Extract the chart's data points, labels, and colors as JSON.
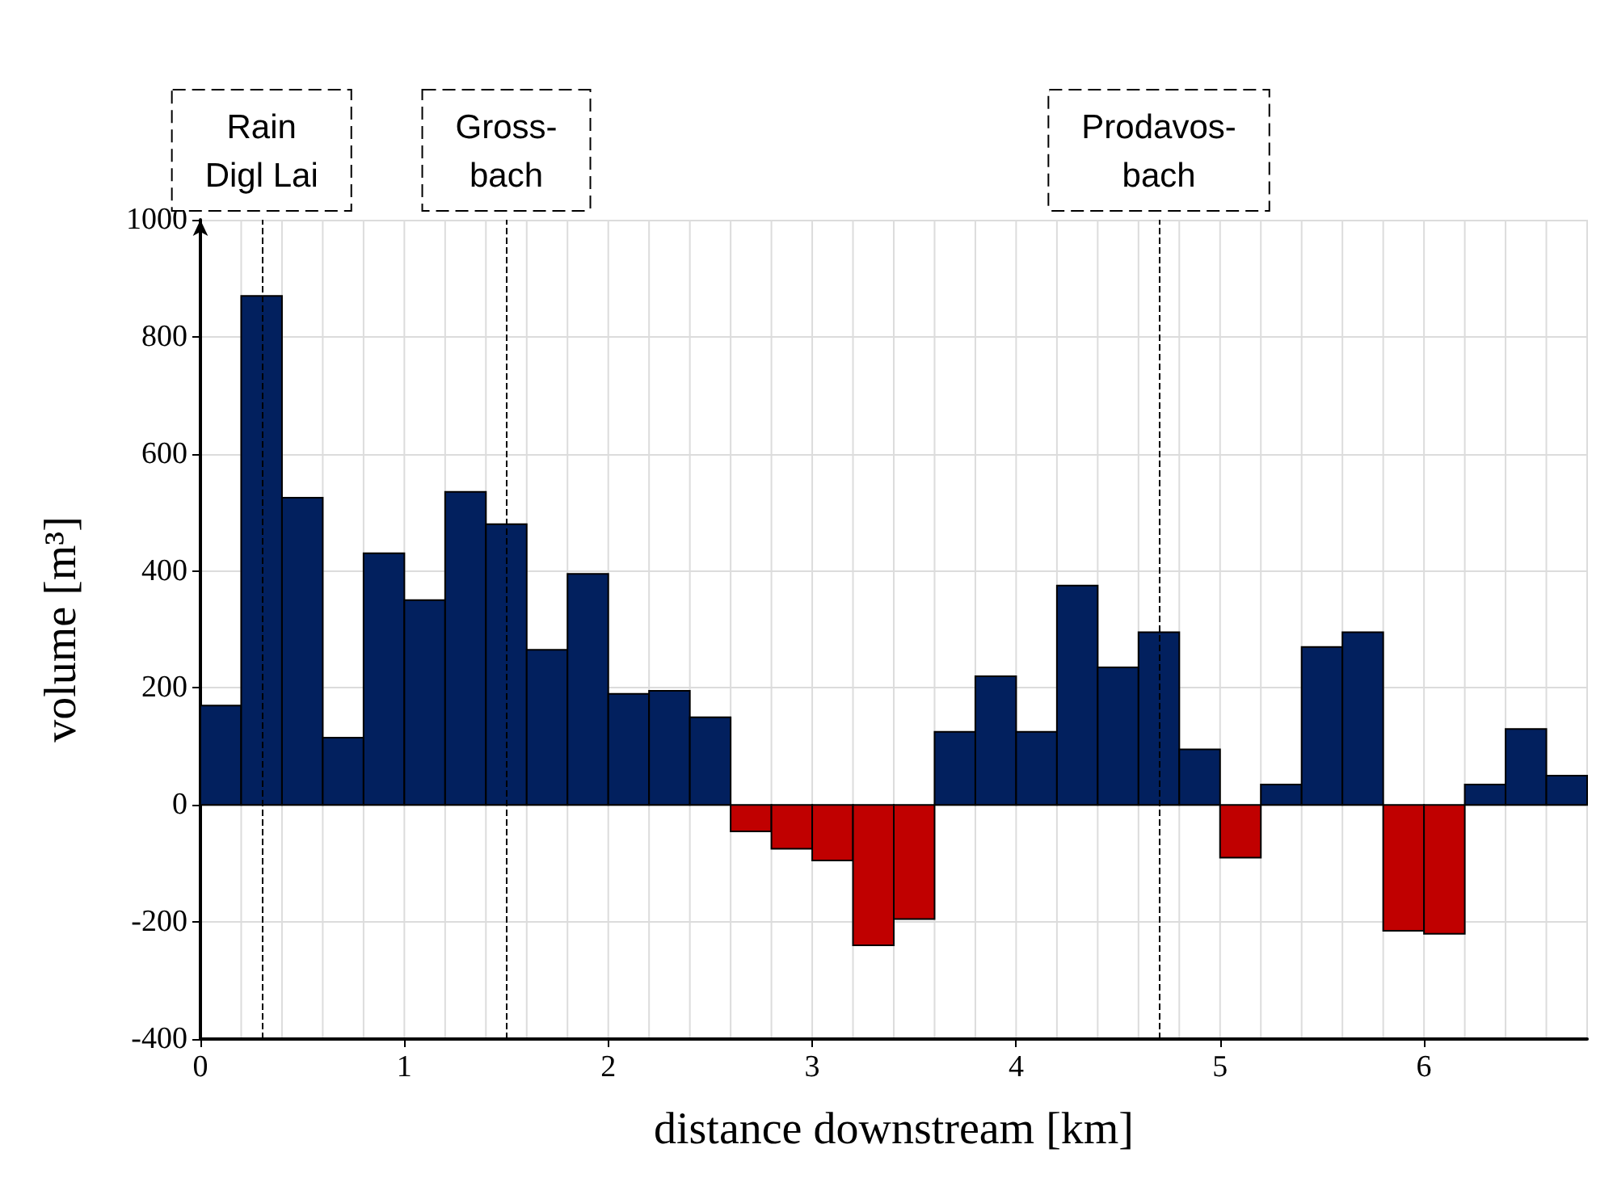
{
  "chart_data": {
    "type": "histogram",
    "xlabel": "distance downstream [km]",
    "ylabel": "volume [m³]",
    "bins": [
      0,
      0.2,
      0.4,
      0.6,
      0.8,
      1,
      1.2,
      1.4,
      1.6,
      1.8,
      2,
      2.2,
      2.4,
      2.6,
      2.8,
      3,
      3.2,
      3.4,
      3.6,
      3.8,
      4,
      4.2,
      4.4,
      4.6,
      4.8,
      5,
      5.2,
      5.4,
      5.6,
      5.8,
      6,
      6.2,
      6.4,
      6.6,
      6.8
    ],
    "values": [
      170,
      870,
      525,
      115,
      430,
      350,
      535,
      480,
      265,
      395,
      190,
      195,
      150,
      -45,
      -75,
      -95,
      -240,
      -195,
      125,
      220,
      125,
      375,
      235,
      295,
      95,
      -90,
      35,
      270,
      295,
      -215,
      -220,
      35,
      130,
      50
    ],
    "colors": [
      "#02205e",
      "#02205e",
      "#02205e",
      "#02205e",
      "#02205e",
      "#02205e",
      "#02205e",
      "#02205e",
      "#02205e",
      "#02205e",
      "#02205e",
      "#02205e",
      "#02205e",
      "#c00000",
      "#c00000",
      "#c00000",
      "#c00000",
      "#c00000",
      "#02205e",
      "#02205e",
      "#02205e",
      "#02205e",
      "#02205e",
      "#02205e",
      "#02205e",
      "#c00000",
      "#02205e",
      "#02205e",
      "#02205e",
      "#c00000",
      "#c00000",
      "#02205e",
      "#02205e",
      "#02205e"
    ],
    "xlim": [
      0,
      6.8
    ],
    "xticks": [
      0,
      1,
      2,
      3,
      4,
      5,
      6
    ],
    "ylim": [
      -400,
      1000
    ],
    "yticks": [
      -400,
      -200,
      0,
      200,
      400,
      600,
      800,
      1000
    ],
    "grid": true,
    "ref_lines": [
      {
        "axis": "x",
        "value": 0.3,
        "label": "Rain\nDigl Lai",
        "line_style": "dashed",
        "color": "#000000"
      },
      {
        "axis": "x",
        "value": 1.5,
        "label": "Gross-\nbach",
        "line_style": "dashed",
        "color": "#000000"
      },
      {
        "axis": "x",
        "value": 4.7,
        "label": "Prodavos-\nbach",
        "line_style": "dashed",
        "color": "#000000"
      }
    ]
  }
}
